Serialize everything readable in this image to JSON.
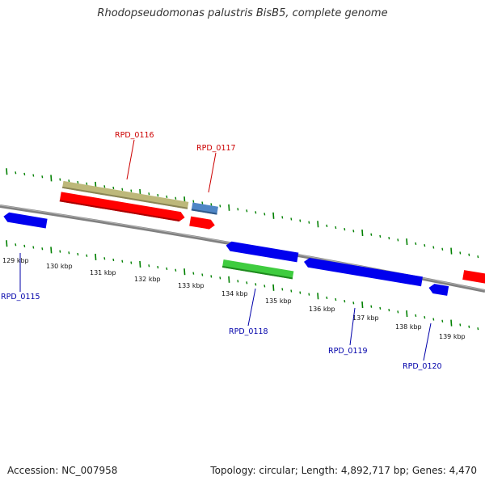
{
  "title": "Rhodopseudomonas palustris BisB5, complete genome",
  "footer": {
    "accession": "Accession: NC_007958",
    "summary": "Topology: circular; Length: 4,892,717 bp; Genes: 4,470"
  },
  "scale_labels": [
    "129 kbp",
    "130 kbp",
    "131 kbp",
    "132 kbp",
    "133 kbp",
    "134 kbp",
    "135 kbp",
    "136 kbp",
    "137 kbp",
    "138 kbp",
    "139 kbp"
  ],
  "gene_labels": {
    "rpd_0116": "RPD_0116",
    "rpd_0117": "RPD_0117",
    "rpd_0115": "RPD_0115",
    "rpd_0118": "RPD_0118",
    "rpd_0119": "RPD_0119",
    "rpd_0120": "RPD_0120"
  },
  "colors": {
    "forward_label": "#cc0000",
    "reverse_label": "#0000aa",
    "backbone": "#808080",
    "ticks": "#008000",
    "cds_forward": "#ff0000",
    "cds_reverse": "#0000ee",
    "gene_forward": "#bdb87a",
    "gene_reverse": "#3fcc3f",
    "rna": "#4f86c6"
  }
}
